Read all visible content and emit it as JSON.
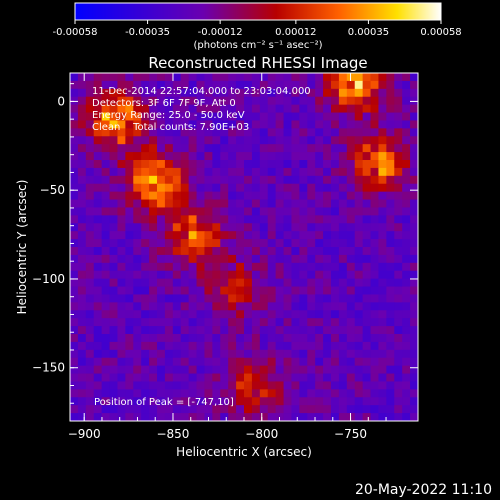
{
  "chart_data": {
    "type": "heatmap",
    "title": "Reconstructed RHESSI Image",
    "xlabel": "Heliocentric X (arcsec)",
    "ylabel": "Heliocentric Y (arcsec)",
    "x_ticks": [
      -900,
      -850,
      -800,
      -750
    ],
    "y_ticks": [
      0,
      -50,
      -100,
      -150
    ],
    "xlim": [
      -908,
      -712
    ],
    "ylim": [
      -180,
      16
    ],
    "colorbar": {
      "ticks": [
        -0.00058,
        -0.00035,
        -0.00012,
        0.00012,
        0.00035,
        0.00058
      ],
      "tick_labels": [
        "-0.00058",
        "-0.00035",
        "-0.00012",
        "0.00012",
        "0.00035",
        "0.00058"
      ],
      "unit_label": "(photons cm⁻² s⁻¹ asec⁻²)",
      "range": [
        -0.00058,
        0.00058
      ],
      "colors": [
        "#0000ff",
        "#6a00b0",
        "#b80000",
        "#ff6000",
        "#ffe000",
        "#ffffff"
      ]
    },
    "annotations": [
      "11-Dec-2014 22:57:04.000 to 23:03:04.000",
      "Detectors: 3F 6F 7F 9F, Att 0",
      "Energy Range: 25.0 - 50.0 keV",
      "Clean    Total counts: 7.90E+03"
    ],
    "peak_label": "Position of Peak = [-747,10]",
    "peak_position": [
      -747,
      10
    ],
    "sources": [
      {
        "x": -882,
        "y": -10,
        "intensity": 0.00058
      },
      {
        "x": -860,
        "y": -45,
        "intensity": 0.00058
      },
      {
        "x": -838,
        "y": -75,
        "intensity": 0.00045
      },
      {
        "x": -815,
        "y": -105,
        "intensity": 0.0003
      },
      {
        "x": -747,
        "y": 10,
        "intensity": 0.00058
      },
      {
        "x": -735,
        "y": -35,
        "intensity": 0.00045
      },
      {
        "x": -805,
        "y": -160,
        "intensity": 0.00035
      }
    ]
  },
  "footer": {
    "timestamp": "20-May-2022 11:10"
  }
}
